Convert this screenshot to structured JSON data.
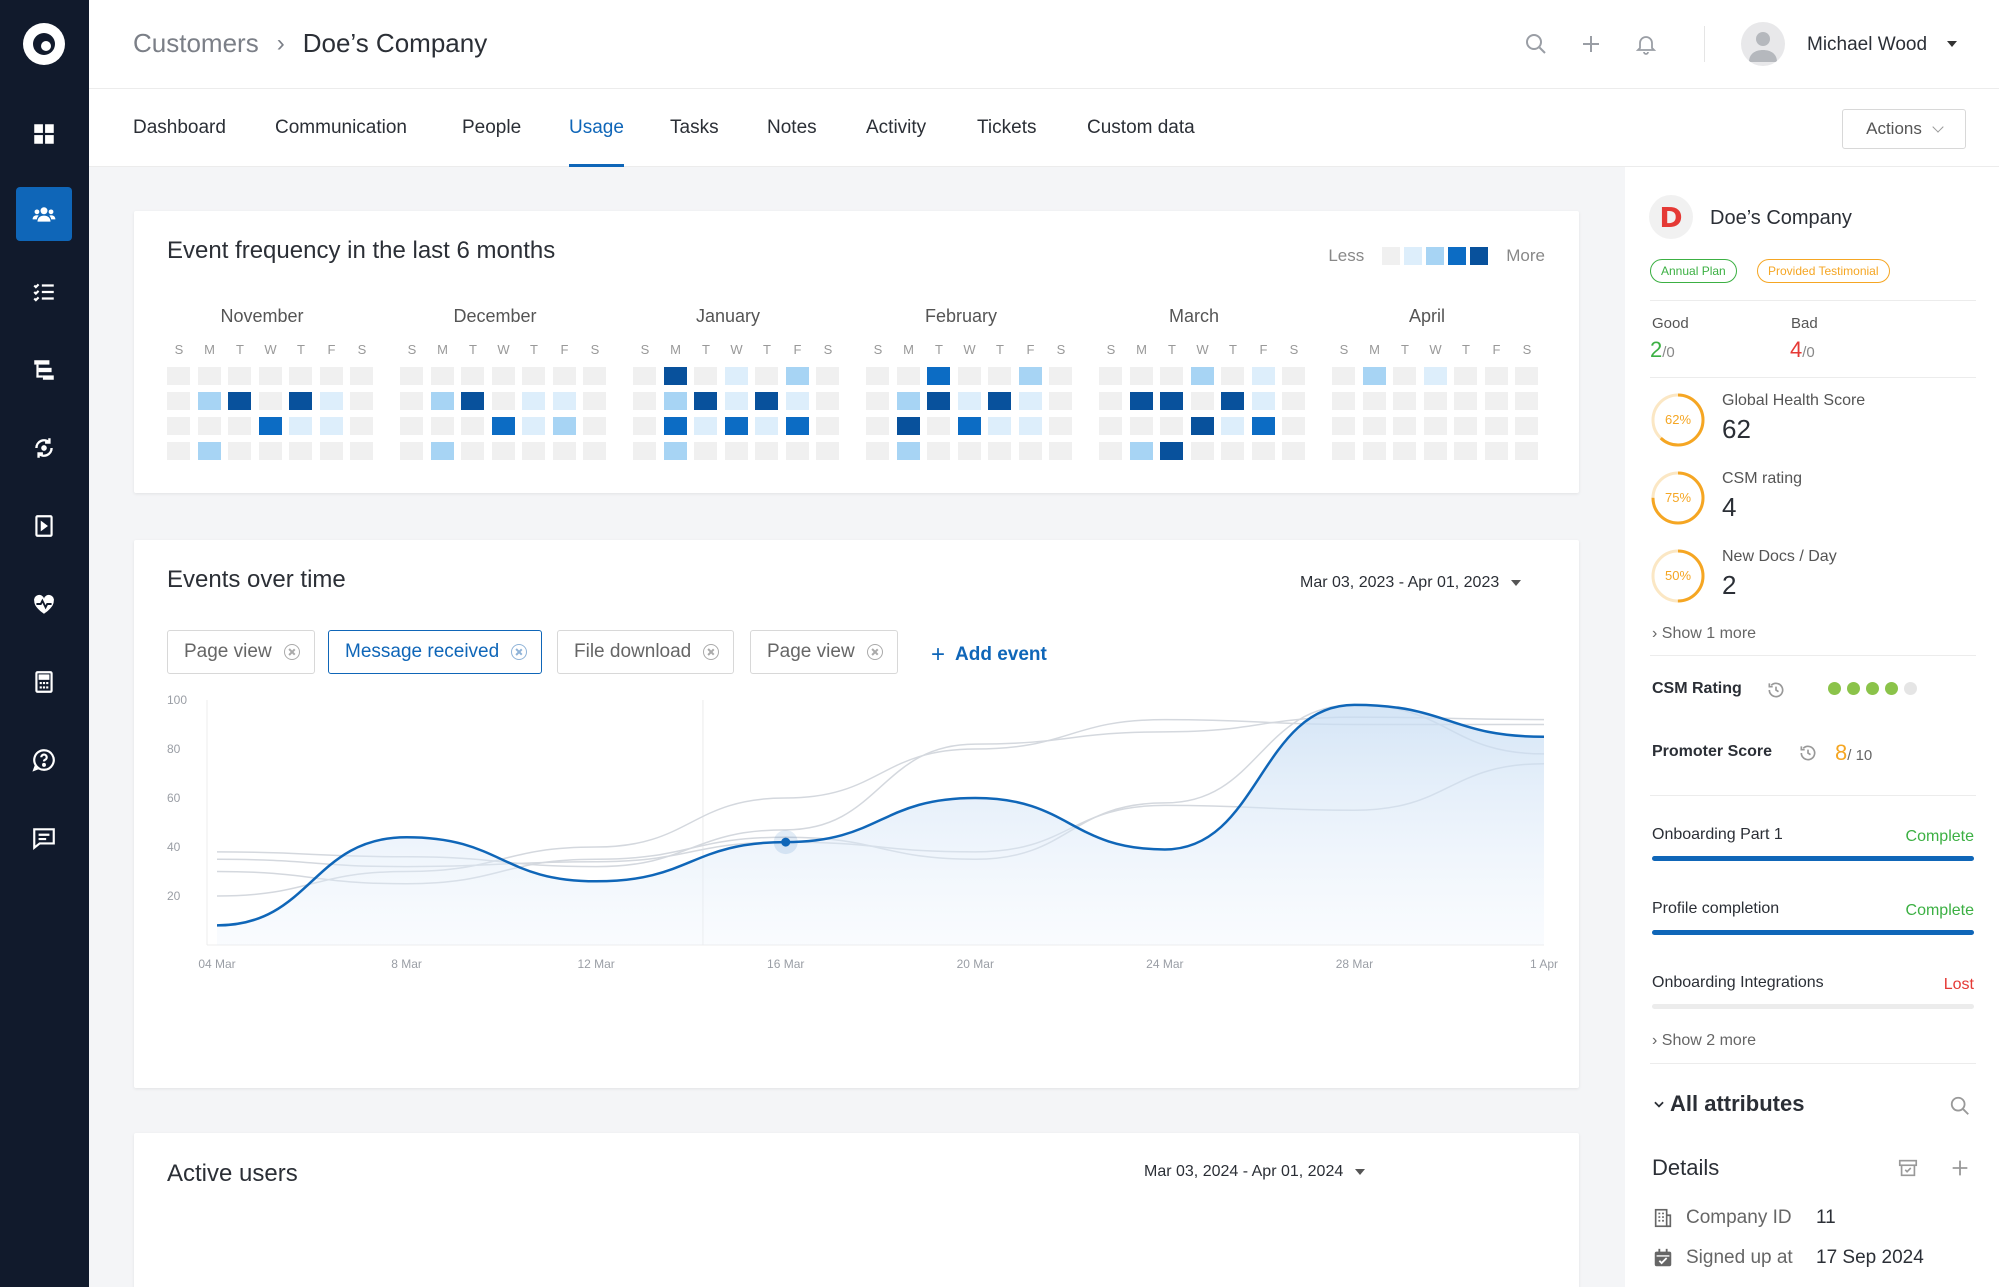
{
  "header": {
    "breadcrumb_parent": "Customers",
    "breadcrumb_sep": "›",
    "breadcrumb_current": "Doe’s Company",
    "user_name": "Michael Wood"
  },
  "tabs": [
    {
      "label": "Dashboard"
    },
    {
      "label": "Communication"
    },
    {
      "label": "People"
    },
    {
      "label": "Usage",
      "active": true
    },
    {
      "label": "Tasks"
    },
    {
      "label": "Notes"
    },
    {
      "label": "Activity"
    },
    {
      "label": "Tickets"
    },
    {
      "label": "Custom data"
    }
  ],
  "actions_label": "Actions",
  "heatmap": {
    "title": "Event frequency in the last 6 months",
    "legend_less": "Less",
    "legend_more": "More",
    "days": [
      "S",
      "M",
      "T",
      "W",
      "T",
      "F",
      "S"
    ],
    "colors": [
      "#f0f0f0",
      "#ddeefb",
      "#a7d4f4",
      "#0c6cc4",
      "#08519c"
    ],
    "months": [
      {
        "name": "November",
        "rows": [
          [
            0,
            0,
            0,
            0,
            0,
            0,
            0
          ],
          [
            0,
            2,
            4,
            0,
            4,
            1,
            0
          ],
          [
            0,
            0,
            0,
            3,
            1,
            1,
            0
          ],
          [
            0,
            2,
            0,
            0,
            0,
            0,
            0
          ]
        ]
      },
      {
        "name": "December",
        "rows": [
          [
            0,
            0,
            0,
            0,
            0,
            0,
            0
          ],
          [
            0,
            2,
            4,
            0,
            1,
            1,
            0
          ],
          [
            0,
            0,
            0,
            3,
            1,
            2,
            0
          ],
          [
            0,
            2,
            0,
            0,
            0,
            0,
            0
          ]
        ]
      },
      {
        "name": "January",
        "rows": [
          [
            0,
            4,
            0,
            1,
            0,
            2,
            0
          ],
          [
            0,
            2,
            4,
            1,
            4,
            1,
            0
          ],
          [
            0,
            3,
            1,
            3,
            1,
            3,
            0
          ],
          [
            0,
            2,
            0,
            0,
            0,
            0,
            0
          ]
        ]
      },
      {
        "name": "February",
        "rows": [
          [
            0,
            0,
            3,
            0,
            0,
            2,
            0
          ],
          [
            0,
            2,
            4,
            1,
            4,
            1,
            0
          ],
          [
            0,
            4,
            0,
            3,
            1,
            1,
            0
          ],
          [
            0,
            2,
            0,
            0,
            0,
            0,
            0
          ]
        ]
      },
      {
        "name": "March",
        "rows": [
          [
            0,
            0,
            0,
            2,
            0,
            1,
            0
          ],
          [
            0,
            4,
            4,
            0,
            4,
            1,
            0
          ],
          [
            0,
            0,
            0,
            4,
            1,
            3,
            0
          ],
          [
            0,
            2,
            4,
            0,
            0,
            0,
            0
          ]
        ]
      },
      {
        "name": "April",
        "rows": [
          [
            0,
            2,
            0,
            1,
            0,
            0,
            0
          ],
          [
            0,
            0,
            0,
            0,
            0,
            0,
            0
          ],
          [
            0,
            0,
            0,
            0,
            0,
            0,
            0
          ],
          [
            0,
            0,
            0,
            0,
            0,
            0,
            0
          ]
        ]
      }
    ]
  },
  "events": {
    "title": "Events over time",
    "date_range": "Mar 03, 2023 - Apr 01, 2023",
    "chips": [
      {
        "label": "Page view",
        "selected": false
      },
      {
        "label": "Message received",
        "selected": true
      },
      {
        "label": "File download",
        "selected": false
      },
      {
        "label": "Page view",
        "selected": false
      }
    ],
    "add_event_label": "Add event",
    "chart_data": {
      "type": "line",
      "x": [
        "04 Mar",
        "8 Mar",
        "12 Mar",
        "16 Mar",
        "20 Mar",
        "24 Mar",
        "28 Mar",
        "1 Apr"
      ],
      "ylim": [
        0,
        100
      ],
      "yticks": [
        20,
        40,
        60,
        80,
        100
      ],
      "grid": false,
      "series": [
        {
          "highlighted": true,
          "color": "#0f66b8",
          "points": [
            [
              0,
              8
            ],
            [
              1,
              44
            ],
            [
              2,
              26
            ],
            [
              3,
              42
            ],
            [
              4,
              60
            ],
            [
              5,
              39
            ],
            [
              6,
              98
            ],
            [
              7,
              85
            ]
          ]
        },
        {
          "highlighted": false,
          "color": "#d4d8de",
          "points": [
            [
              0,
              38
            ],
            [
              1,
              36
            ],
            [
              2,
              32
            ],
            [
              3,
              47
            ],
            [
              4,
              82
            ],
            [
              5,
              87
            ],
            [
              6,
              93
            ],
            [
              7,
              92
            ]
          ]
        },
        {
          "highlighted": false,
          "color": "#d4d8de",
          "points": [
            [
              0,
              35
            ],
            [
              1,
              32
            ],
            [
              2,
              34
            ],
            [
              3,
              42
            ],
            [
              4,
              38
            ],
            [
              5,
              57
            ],
            [
              6,
              55
            ],
            [
              7,
              74
            ]
          ]
        },
        {
          "highlighted": false,
          "color": "#d4d8de",
          "points": [
            [
              0,
              20
            ],
            [
              1,
              30
            ],
            [
              2,
              40
            ],
            [
              3,
              60
            ],
            [
              4,
              80
            ],
            [
              5,
              92
            ],
            [
              6,
              90
            ],
            [
              7,
              90
            ]
          ]
        },
        {
          "highlighted": false,
          "color": "#d4d8de",
          "points": [
            [
              0,
              30
            ],
            [
              1,
              25
            ],
            [
              2,
              35
            ],
            [
              3,
              44
            ],
            [
              4,
              35
            ],
            [
              5,
              58
            ],
            [
              6,
              98
            ],
            [
              7,
              78
            ]
          ]
        }
      ]
    }
  },
  "active_users": {
    "title": "Active users",
    "date_range": "Mar 03, 2024 - Apr 01, 2024"
  },
  "panel": {
    "company_initial": "D",
    "company_name": "Doe’s Company",
    "badge_plan": "Annual Plan",
    "badge_testimonial": "Provided Testimonial",
    "good_label": "Good",
    "good_value": "2",
    "good_den": "/0",
    "bad_label": "Bad",
    "bad_value": "4",
    "bad_den": "/0",
    "scores": [
      {
        "label": "Global Health Score",
        "value": "62",
        "ring": "62%",
        "pct": 62
      },
      {
        "label": "CSM rating",
        "value": "4",
        "ring": "75%",
        "pct": 75
      },
      {
        "label": "New Docs / Day",
        "value": "2",
        "ring": "50%",
        "pct": 50
      }
    ],
    "show_more_1": "Show 1 more",
    "csm_rating_label": "CSM Rating",
    "csm_rating_value": 4,
    "csm_rating_max": 5,
    "promoter_label": "Promoter Score",
    "promoter_value": "8",
    "promoter_den": "/ 10",
    "progress": [
      {
        "label": "Onboarding Part 1",
        "status": "Complete",
        "status_color": "#3cb043",
        "fraction": 1.0
      },
      {
        "label": "Profile completion",
        "status": "Complete",
        "status_color": "#3cb043",
        "fraction": 1.0
      },
      {
        "label": "Onboarding Integrations",
        "status": "Lost",
        "status_color": "#e53935",
        "fraction": 0.0
      }
    ],
    "show_more_2": "Show 2 more",
    "all_attributes": "All attributes",
    "details_title": "Details",
    "company_id_label": "Company ID",
    "company_id_value": "11",
    "signed_up_label": "Signed up at",
    "signed_up_value": "17 Sep 2024"
  }
}
